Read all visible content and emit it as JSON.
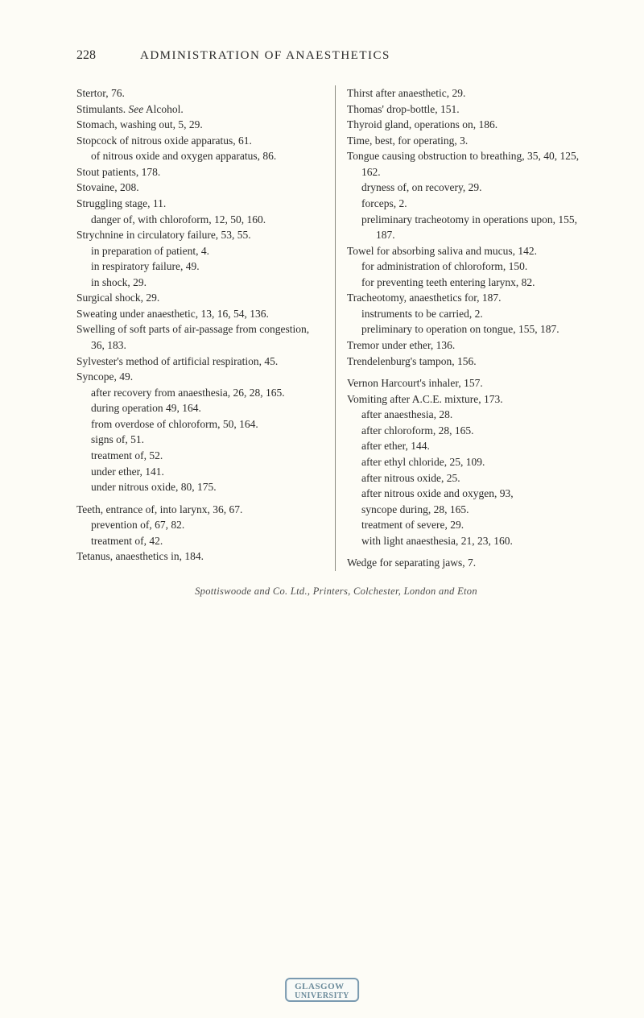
{
  "header": {
    "page_number": "228",
    "title": "ADMINISTRATION OF ANAESTHETICS"
  },
  "left_col": {
    "e1": "Stertor, 76.",
    "e2a": "Stimulants.",
    "e2b": "See",
    "e2c": " Alcohol.",
    "e3": "Stomach, washing out, 5, 29.",
    "e4": "Stopcock of nitrous oxide apparatus, 61.",
    "e5": "of nitrous oxide and oxygen apparatus, 86.",
    "e6": "Stout patients, 178.",
    "e7": "Stovaine, 208.",
    "e8": "Struggling stage, 11.",
    "e9": "danger of, with chloroform, 12, 50, 160.",
    "e10": "Strychnine in circulatory failure, 53, 55.",
    "e11": "in preparation of patient, 4.",
    "e12": "in respiratory failure, 49.",
    "e13": "in shock, 29.",
    "e14": "Surgical shock, 29.",
    "e15": "Sweating under anaesthetic, 13, 16, 54, 136.",
    "e16": "Swelling of soft parts of air-passage from congestion, 36, 183.",
    "e17": "Sylvester's method of artificial respiration, 45.",
    "e18": "Syncope, 49.",
    "e19": "after recovery from anaesthesia, 26, 28, 165.",
    "e20": "during operation 49, 164.",
    "e21": "from overdose of chloroform, 50, 164.",
    "e22": "signs of, 51.",
    "e23": "treatment of, 52.",
    "e24": "under ether, 141.",
    "e25": "under nitrous oxide, 80, 175.",
    "e26": "Teeth, entrance of, into larynx, 36, 67.",
    "e27": "prevention of, 67, 82.",
    "e28": "treatment of, 42.",
    "e29": "Tetanus, anaesthetics in, 184."
  },
  "right_col": {
    "e1": "Thirst after anaesthetic, 29.",
    "e2": "Thomas' drop-bottle, 151.",
    "e3": "Thyroid gland, operations on, 186.",
    "e4": "Time, best, for operating, 3.",
    "e5": "Tongue causing obstruction to breathing, 35, 40, 125, 162.",
    "e6": "dryness of, on recovery, 29.",
    "e7": "forceps, 2.",
    "e8": "preliminary tracheotomy in operations upon, 155, 187.",
    "e9": "Towel for absorbing saliva and mucus, 142.",
    "e10": "for administration of chloroform, 150.",
    "e11": "for preventing teeth entering larynx, 82.",
    "e12": "Tracheotomy, anaesthetics for, 187.",
    "e13": "instruments to be carried, 2.",
    "e14": "preliminary to operation on tongue, 155, 187.",
    "e15": "Tremor under ether, 136.",
    "e16": "Trendelenburg's tampon, 156.",
    "e17": "Vernon Harcourt's inhaler, 157.",
    "e18": "Vomiting after A.C.E. mixture, 173.",
    "e19": "after anaesthesia, 28.",
    "e20": "after chloroform, 28, 165.",
    "e21": "after ether, 144.",
    "e22": "after ethyl chloride, 25, 109.",
    "e23": "after nitrous oxide, 25.",
    "e24": "after nitrous oxide and oxygen, 93,",
    "e25": "syncope during, 28, 165.",
    "e26": "treatment of severe, 29.",
    "e27": "with light anaesthesia, 21, 23, 160.",
    "e28": "Wedge for separating jaws, 7."
  },
  "footer": "Spottiswoode and Co. Ltd., Printers, Colchester, London and Eton",
  "stamp": {
    "line1": "GLASGOW",
    "line2": "UNIVERSITY"
  }
}
